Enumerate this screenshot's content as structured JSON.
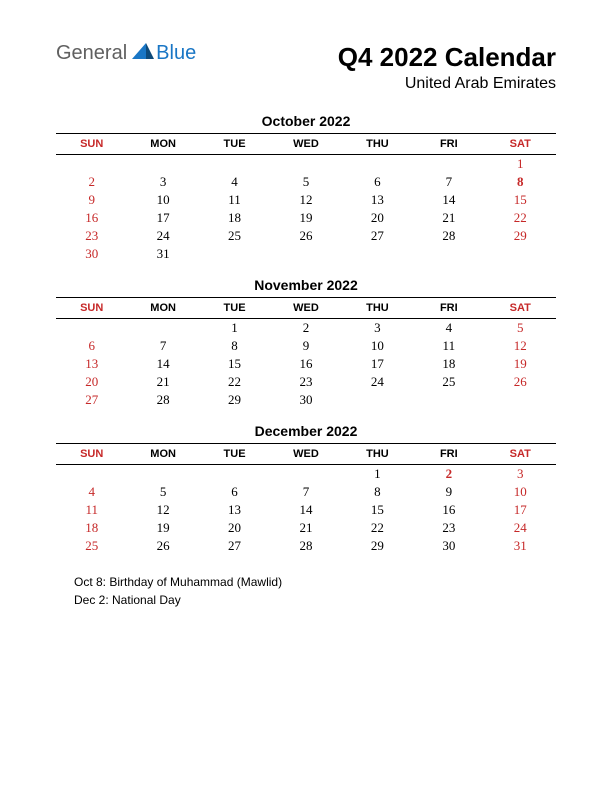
{
  "logo": {
    "part1": "General",
    "part2": "Blue"
  },
  "title": "Q4 2022 Calendar",
  "subtitle": "United Arab Emirates",
  "day_headers": [
    "SUN",
    "MON",
    "TUE",
    "WED",
    "THU",
    "FRI",
    "SAT"
  ],
  "weekend_header_color": "#c62828",
  "weekday_header_color": "#000000",
  "weekend_cell_color": "#c62828",
  "holiday_cell_bold": true,
  "months": [
    {
      "name": "October 2022",
      "weeks": [
        [
          null,
          null,
          null,
          null,
          null,
          null,
          {
            "d": 1,
            "w": true
          }
        ],
        [
          {
            "d": 2,
            "w": true
          },
          {
            "d": 3
          },
          {
            "d": 4
          },
          {
            "d": 5
          },
          {
            "d": 6
          },
          {
            "d": 7
          },
          {
            "d": 8,
            "w": true,
            "h": true
          }
        ],
        [
          {
            "d": 9,
            "w": true
          },
          {
            "d": 10
          },
          {
            "d": 11
          },
          {
            "d": 12
          },
          {
            "d": 13
          },
          {
            "d": 14
          },
          {
            "d": 15,
            "w": true
          }
        ],
        [
          {
            "d": 16,
            "w": true
          },
          {
            "d": 17
          },
          {
            "d": 18
          },
          {
            "d": 19
          },
          {
            "d": 20
          },
          {
            "d": 21
          },
          {
            "d": 22,
            "w": true
          }
        ],
        [
          {
            "d": 23,
            "w": true
          },
          {
            "d": 24
          },
          {
            "d": 25
          },
          {
            "d": 26
          },
          {
            "d": 27
          },
          {
            "d": 28
          },
          {
            "d": 29,
            "w": true
          }
        ],
        [
          {
            "d": 30,
            "w": true
          },
          {
            "d": 31
          },
          null,
          null,
          null,
          null,
          null
        ]
      ]
    },
    {
      "name": "November 2022",
      "weeks": [
        [
          null,
          null,
          {
            "d": 1
          },
          {
            "d": 2
          },
          {
            "d": 3
          },
          {
            "d": 4
          },
          {
            "d": 5,
            "w": true
          }
        ],
        [
          {
            "d": 6,
            "w": true
          },
          {
            "d": 7
          },
          {
            "d": 8
          },
          {
            "d": 9
          },
          {
            "d": 10
          },
          {
            "d": 11
          },
          {
            "d": 12,
            "w": true
          }
        ],
        [
          {
            "d": 13,
            "w": true
          },
          {
            "d": 14
          },
          {
            "d": 15
          },
          {
            "d": 16
          },
          {
            "d": 17
          },
          {
            "d": 18
          },
          {
            "d": 19,
            "w": true
          }
        ],
        [
          {
            "d": 20,
            "w": true
          },
          {
            "d": 21
          },
          {
            "d": 22
          },
          {
            "d": 23
          },
          {
            "d": 24
          },
          {
            "d": 25
          },
          {
            "d": 26,
            "w": true
          }
        ],
        [
          {
            "d": 27,
            "w": true
          },
          {
            "d": 28
          },
          {
            "d": 29
          },
          {
            "d": 30
          },
          null,
          null,
          null
        ]
      ]
    },
    {
      "name": "December 2022",
      "weeks": [
        [
          null,
          null,
          null,
          null,
          {
            "d": 1
          },
          {
            "d": 2,
            "h": true
          },
          {
            "d": 3,
            "w": true
          }
        ],
        [
          {
            "d": 4,
            "w": true
          },
          {
            "d": 5
          },
          {
            "d": 6
          },
          {
            "d": 7
          },
          {
            "d": 8
          },
          {
            "d": 9
          },
          {
            "d": 10,
            "w": true
          }
        ],
        [
          {
            "d": 11,
            "w": true
          },
          {
            "d": 12
          },
          {
            "d": 13
          },
          {
            "d": 14
          },
          {
            "d": 15
          },
          {
            "d": 16
          },
          {
            "d": 17,
            "w": true
          }
        ],
        [
          {
            "d": 18,
            "w": true
          },
          {
            "d": 19
          },
          {
            "d": 20
          },
          {
            "d": 21
          },
          {
            "d": 22
          },
          {
            "d": 23
          },
          {
            "d": 24,
            "w": true
          }
        ],
        [
          {
            "d": 25,
            "w": true
          },
          {
            "d": 26
          },
          {
            "d": 27
          },
          {
            "d": 28
          },
          {
            "d": 29
          },
          {
            "d": 30
          },
          {
            "d": 31,
            "w": true
          }
        ]
      ]
    }
  ],
  "notes": [
    "Oct 8: Birthday of Muhammad (Mawlid)",
    "Dec 2: National Day"
  ]
}
